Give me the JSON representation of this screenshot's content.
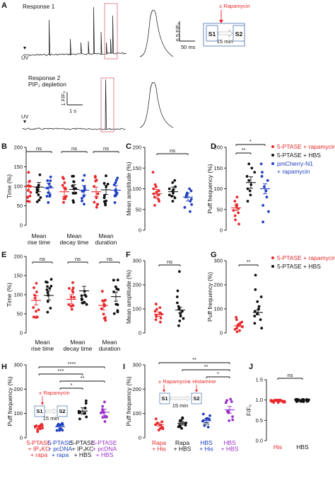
{
  "colors": {
    "red": "#e8282b",
    "black": "#111111",
    "blue": "#1f3fbf",
    "purple": "#9b2fc9",
    "pink": "#e07b8a",
    "diagram_blue": "#5a82b4"
  },
  "panelA": {
    "letter": "A",
    "response1": "Response 1",
    "response2": "Response 2",
    "pip2": "PIP₂ depletion",
    "uv": "UV",
    "scale_f": "0.5 F/F₀",
    "scale_ms": "50 ms",
    "scale_1f": "1 F/F₀",
    "scale_1s": "1 s",
    "rapamycin": "± Rapamycin",
    "s1": "S1",
    "s2": "S2",
    "min15": "15 min"
  },
  "legendB": {
    "items": [
      "5-PTASE + rapamycin",
      "5-PTASE + HBS",
      "pmCherry-N1",
      "+ rapamycin"
    ]
  },
  "legendG": {
    "items": [
      "5-PTASE + rapamycin",
      "5-PTASE + HBS"
    ]
  },
  "chart_data": [
    {
      "panel": "B",
      "type": "scatter",
      "ylabel": "Time (%)",
      "ylim": [
        0,
        200
      ],
      "yticks": [
        0,
        50,
        100,
        150,
        200
      ],
      "categories": [
        "Mean\nrise time",
        "Mean\ndecay time",
        "Mean\nduration"
      ],
      "series": [
        {
          "name": "5-PTASE + rapamycin",
          "means": [
            99,
            86,
            86
          ]
        },
        {
          "name": "5-PTASE + HBS",
          "means": [
            98,
            92,
            91
          ]
        },
        {
          "name": "pmCherry-N1 + rapamycin",
          "means": [
            96,
            90,
            90
          ]
        }
      ],
      "annotations": [
        "ns",
        "ns",
        "ns"
      ]
    },
    {
      "panel": "C",
      "type": "scatter",
      "ylabel": "Mean amplitude (%)",
      "ylim": [
        0,
        200
      ],
      "yticks": [
        0,
        50,
        100,
        150,
        200
      ],
      "series": [
        {
          "name": "5-PTASE + rapamycin",
          "mean": 88,
          "values": [
            60,
            70,
            75,
            80,
            85,
            88,
            92,
            95,
            100,
            105,
            110,
            140
          ]
        },
        {
          "name": "5-PTASE + HBS",
          "mean": 93,
          "values": [
            70,
            78,
            82,
            85,
            90,
            95,
            98,
            100,
            105,
            115,
            120
          ]
        },
        {
          "name": "pmCherry-N1 + rapamycin",
          "mean": 80,
          "values": [
            45,
            55,
            62,
            70,
            75,
            80,
            85,
            90,
            95,
            100
          ]
        }
      ],
      "annotations": [
        "ns"
      ]
    },
    {
      "panel": "D",
      "type": "scatter",
      "ylabel": "Puff frequency (%)",
      "ylim": [
        0,
        200
      ],
      "yticks": [
        0,
        50,
        100,
        150,
        200
      ],
      "series": [
        {
          "name": "5-PTASE + rapamycin",
          "mean": 54,
          "values": [
            15,
            25,
            35,
            42,
            48,
            52,
            58,
            62,
            70,
            80
          ]
        },
        {
          "name": "5-PTASE + HBS",
          "mean": 115,
          "values": [
            70,
            85,
            95,
            100,
            110,
            120,
            130,
            140,
            150,
            160
          ]
        },
        {
          "name": "pmCherry-N1 + rapamycin",
          "mean": 100,
          "values": [
            20,
            45,
            60,
            80,
            95,
            105,
            120,
            130,
            140,
            160
          ]
        }
      ],
      "annotations": [
        "*",
        "**",
        "ns"
      ]
    },
    {
      "panel": "E",
      "type": "scatter",
      "ylabel": "Time (%)",
      "ylim": [
        0,
        200
      ],
      "yticks": [
        0,
        50,
        100,
        150,
        200
      ],
      "categories": [
        "Mean\nrise time",
        "Mean\ndecay time",
        "Mean\nduration"
      ],
      "series": [
        {
          "name": "5-PTASE + rapamycin",
          "means": [
            85,
            88,
            72
          ]
        },
        {
          "name": "5-PTASE + HBS",
          "means": [
            98,
            110,
            95
          ]
        }
      ],
      "annotations": [
        "ns",
        "ns",
        "ns"
      ]
    },
    {
      "panel": "F",
      "type": "scatter",
      "ylabel": "Mean amplitude (%)",
      "ylim": [
        0,
        300
      ],
      "yticks": [
        0,
        100,
        200,
        300
      ],
      "series": [
        {
          "name": "5-PTASE + rapamycin",
          "mean": 78,
          "values": [
            45,
            55,
            62,
            68,
            72,
            78,
            82,
            90,
            98,
            105,
            120
          ]
        },
        {
          "name": "5-PTASE + HBS",
          "mean": 95,
          "values": [
            30,
            50,
            60,
            70,
            80,
            90,
            100,
            110,
            125,
            150,
            175,
            255
          ]
        }
      ],
      "annotations": [
        "ns"
      ]
    },
    {
      "panel": "G",
      "type": "scatter",
      "ylabel": "Puff frequency (%)",
      "ylim": [
        0,
        300
      ],
      "yticks": [
        0,
        100,
        200,
        300
      ],
      "series": [
        {
          "name": "5-PTASE + rapamycin",
          "mean": 30,
          "values": [
            5,
            10,
            15,
            20,
            25,
            30,
            35,
            40,
            45,
            55,
            65
          ]
        },
        {
          "name": "5-PTASE + HBS",
          "mean": 85,
          "values": [
            20,
            40,
            55,
            70,
            80,
            90,
            100,
            110,
            130,
            150,
            180,
            240
          ]
        }
      ],
      "annotations": [
        "**"
      ]
    },
    {
      "panel": "H",
      "type": "scatter",
      "ylabel": "Puff frequency (%)",
      "ylim": [
        0,
        300
      ],
      "yticks": [
        0,
        100,
        200,
        300
      ],
      "categories": [
        "5-PTASE + IP₃KC + rapa",
        "5-PTASE + pcDNA + rapa",
        "5-PTASE + IP₃KC + HBS",
        "5-PTASE + pcDNA + HBS"
      ],
      "series": [
        {
          "name": "5-PTASE + IP₃KC + rapa",
          "mean": 40
        },
        {
          "name": "5-PTASE + pcDNA + rapa",
          "mean": 45
        },
        {
          "name": "5-PTASE + IP₃KC + HBS",
          "mean": 110
        },
        {
          "name": "5-PTASE + pcDNA + HBS",
          "mean": 105
        }
      ],
      "annotations": [
        "****",
        "***",
        "**",
        "*"
      ]
    },
    {
      "panel": "I",
      "type": "scatter",
      "ylabel": "Puff frequency (%)",
      "ylim": [
        0,
        300
      ],
      "yticks": [
        0,
        100,
        200,
        300
      ],
      "categories": [
        "Rapa + His",
        "Rapa + HBS",
        "HBS + His",
        "HBS + HBS"
      ],
      "series": [
        {
          "name": "Rapa + His",
          "mean": 55
        },
        {
          "name": "Rapa + HBS",
          "mean": 60
        },
        {
          "name": "HBS + His",
          "mean": 70
        },
        {
          "name": "HBS + HBS",
          "mean": 115
        }
      ],
      "annotations": [
        "**",
        "**",
        "*",
        "ns",
        "ns"
      ]
    },
    {
      "panel": "J",
      "type": "scatter",
      "ylabel": "F/F₀",
      "ylim": [
        0,
        1.5
      ],
      "yticks": [
        0.0,
        0.5,
        1.0,
        1.5
      ],
      "categories": [
        "His",
        "HBS"
      ],
      "series": [
        {
          "name": "His",
          "mean": 0.97
        },
        {
          "name": "HBS",
          "mean": 0.99
        }
      ],
      "annotations": [
        "ns"
      ]
    }
  ],
  "tickLabels": {
    "y200": [
      "0",
      "50",
      "100",
      "150",
      "200"
    ],
    "y300": [
      "0",
      "100",
      "200",
      "300"
    ],
    "yJ": [
      "0.0",
      "0.5",
      "1.0",
      "1.5"
    ],
    "B_x": [
      [
        "Mean",
        "rise time"
      ],
      [
        "Mean",
        "decay time"
      ],
      [
        "Mean",
        "duration"
      ]
    ],
    "H_x": [
      [
        "5-PTASE",
        "+ IP₃KC",
        "+ rapa"
      ],
      [
        "5-PTASE",
        "+ pcDNA",
        "+ rapa"
      ],
      [
        "5-PTASE",
        "+ IP₃KC",
        "+ HBS"
      ],
      [
        "5-PTASE",
        "+ pcDNA",
        "+ HBS"
      ]
    ],
    "I_x": [
      [
        "Rapa",
        "+ His"
      ],
      [
        "Rapa",
        "+ HBS"
      ],
      [
        "HBS",
        "+ His"
      ],
      [
        "HBS",
        "+ HBS"
      ]
    ],
    "J_x": [
      "His",
      "HBS"
    ]
  },
  "insetI": {
    "rapamycin": "± Rapamycin",
    "histamine": "± Histamine",
    "s1": "S1",
    "s2": "S2",
    "min15": "15 min"
  }
}
